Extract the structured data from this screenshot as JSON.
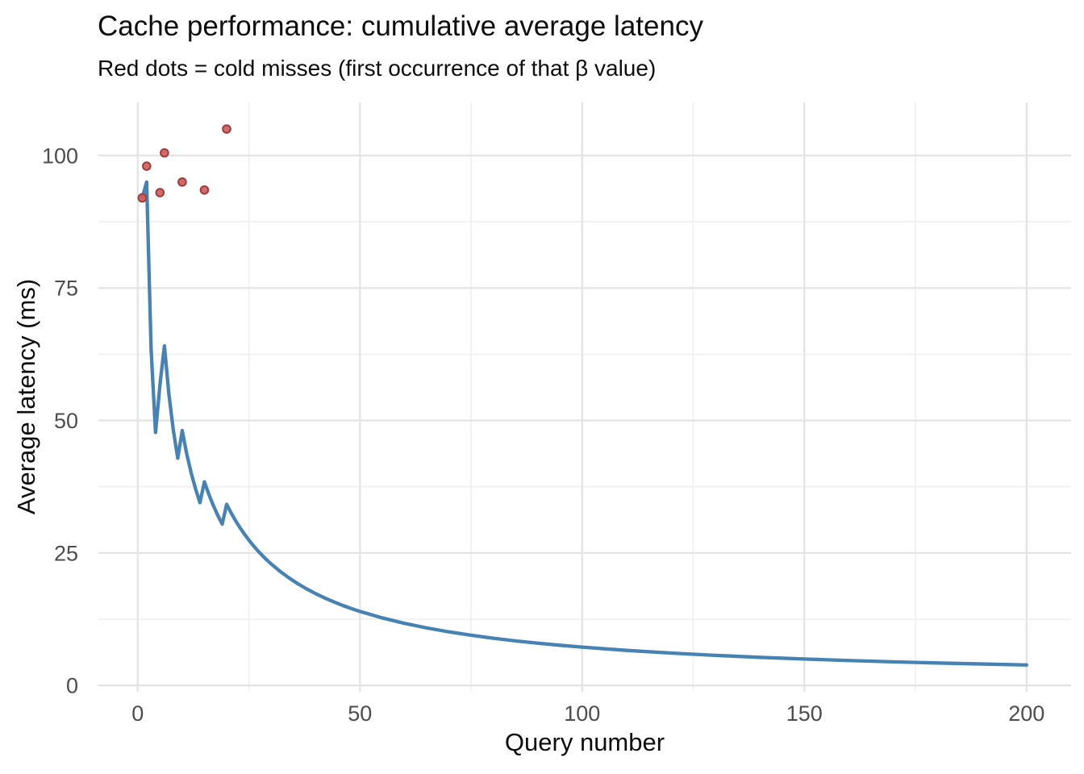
{
  "chart_data": {
    "type": "line",
    "title": "Cache performance: cumulative average latency",
    "subtitle": "Red dots = cold misses (first occurrence of that β value)",
    "xlabel": "Query number",
    "ylabel": "Average latency (ms)",
    "xlim": [
      0,
      200
    ],
    "ylim": [
      0,
      110
    ],
    "x_ticks": [
      0,
      50,
      100,
      150,
      200
    ],
    "x_minor_ticks": [
      25,
      75,
      125,
      175
    ],
    "y_ticks": [
      0,
      25,
      50,
      75,
      100
    ],
    "y_minor_ticks": [
      12.5,
      37.5,
      62.5,
      87.5
    ],
    "grid": "major+minor",
    "legend": "none",
    "colors": {
      "line": "#4682B4",
      "dot_fill": "#CD5C5C",
      "dot_stroke": "#A03C3C",
      "grid_major": "#E4E4E4",
      "grid_minor": "#EFEFEF",
      "tick_label": "#4D4D4D",
      "text": "#0E0E0E",
      "background": "#FFFFFF"
    },
    "series": [
      {
        "name": "cumulative-average-latency",
        "type": "line",
        "x": [
          1,
          2,
          3,
          4,
          5,
          6,
          7,
          8,
          9,
          10,
          11,
          12,
          13,
          14,
          15,
          16,
          17,
          18,
          19,
          20,
          21,
          22,
          23,
          24,
          25,
          26,
          27,
          28,
          29,
          30,
          32,
          34,
          36,
          38,
          40,
          42,
          44,
          46,
          48,
          50,
          55,
          60,
          65,
          70,
          75,
          80,
          85,
          90,
          95,
          100,
          110,
          120,
          130,
          140,
          150,
          160,
          170,
          180,
          190,
          200
        ],
        "y": [
          92,
          95,
          63.5,
          47.75,
          56.8,
          64.08,
          55,
          48.19,
          42.89,
          48.1,
          43.77,
          40.17,
          37.12,
          34.5,
          38.43,
          36.06,
          33.97,
          32.11,
          30.45,
          34.18,
          32.57,
          31.11,
          29.78,
          28.56,
          27.44,
          26.4,
          25.44,
          24.55,
          23.72,
          22.95,
          21.55,
          20.31,
          19.21,
          18.22,
          17.34,
          16.54,
          15.81,
          15.14,
          14.53,
          13.97,
          12.75,
          11.73,
          10.86,
          10.12,
          9.48,
          8.92,
          8.42,
          7.98,
          7.59,
          7.24,
          6.62,
          6.11,
          5.68,
          5.31,
          4.99,
          4.71,
          4.46,
          4.24,
          4.05,
          3.87
        ]
      },
      {
        "name": "cold-misses",
        "type": "scatter",
        "points": [
          {
            "x": 1,
            "y": 92
          },
          {
            "x": 2,
            "y": 98
          },
          {
            "x": 5,
            "y": 93
          },
          {
            "x": 6,
            "y": 100.5
          },
          {
            "x": 10,
            "y": 95
          },
          {
            "x": 15,
            "y": 93.5
          },
          {
            "x": 20,
            "y": 105
          }
        ]
      }
    ]
  }
}
